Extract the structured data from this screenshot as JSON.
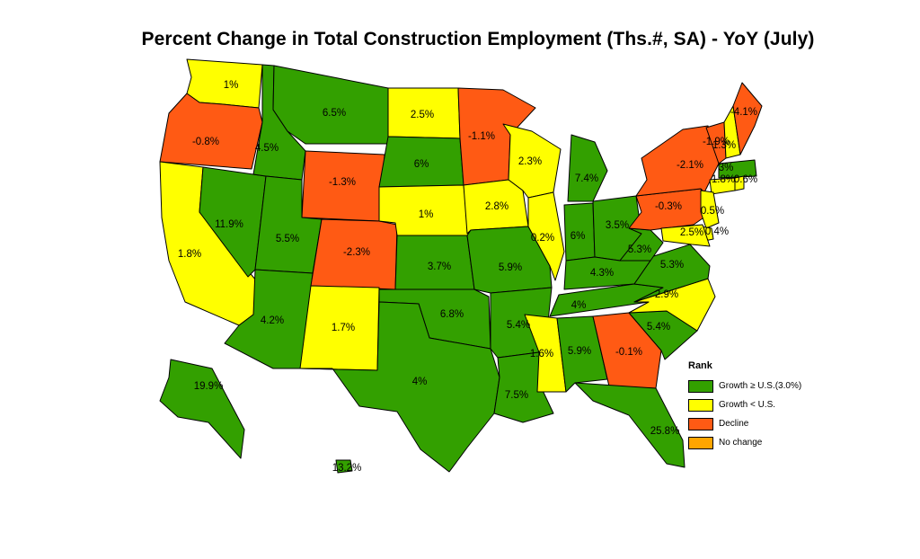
{
  "title": "Percent Change in Total Construction Employment (Ths.#, SA) - YoY (July)",
  "colors": {
    "growth_above": "#33a000",
    "growth_below": "#ffff00",
    "decline": "#ff5a14",
    "no_change": "#ffa500"
  },
  "legend": {
    "title": "Rank",
    "items": [
      {
        "label": "Growth ≥ U.S.(3.0%)",
        "color": "#33a000"
      },
      {
        "label": "Growth < U.S.",
        "color": "#ffff00"
      },
      {
        "label": "Decline",
        "color": "#ff5a14"
      },
      {
        "label": "No change",
        "color": "#ffa500"
      }
    ]
  },
  "states": {
    "WA": "1%",
    "OR": "-0.8%",
    "CA": "1.8%",
    "NV": "11.9%",
    "ID": "4.5%",
    "MT": "6.5%",
    "WY": "-1.3%",
    "UT": "5.5%",
    "AZ": "4.2%",
    "CO": "-2.3%",
    "NM": "1.7%",
    "ND": "2.5%",
    "SD": "6%",
    "NE": "1%",
    "KS": "3.7%",
    "OK": "6.8%",
    "TX": "4%",
    "MN": "-1.1%",
    "IA": "2.8%",
    "MO": "5.9%",
    "AR": "5.4%",
    "LA": "7.5%",
    "WI": "2.3%",
    "IL": "0.2%",
    "MI": "7.4%",
    "IN": "6%",
    "OH": "3.5%",
    "KY": "4.3%",
    "TN": "4%",
    "MS": "1.6%",
    "AL": "5.9%",
    "GA": "-0.1%",
    "FL": "25.8%",
    "SC": "5.4%",
    "NC": "2.9%",
    "VA": "5.3%",
    "WV": "5.3%",
    "PA": "-0.3%",
    "NY": "-2.1%",
    "VT": "-1.9%",
    "NH": "1.3%",
    "ME": "-4.1%",
    "MA": "3%",
    "CT": "1.8%",
    "RI": "0.6%",
    "NJ": "0.5%",
    "DE": "0.4%",
    "MD": "2.5%",
    "AK": "19.9%",
    "HI": "13.2%"
  }
}
